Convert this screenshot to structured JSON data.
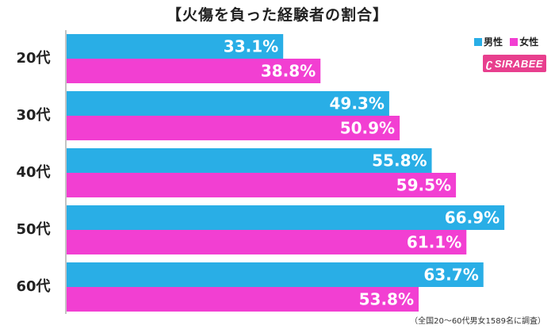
{
  "title": "【火傷を負った経験者の割合】",
  "legend": [
    {
      "label": "男性",
      "color": "#29aee6"
    },
    {
      "label": "女性",
      "color": "#f23fd2"
    }
  ],
  "brand": {
    "mark": "ʗ",
    "text": "SIRABEE"
  },
  "source_note": "（全国20〜60代男女1589名に調査）",
  "chart_data": {
    "type": "bar",
    "orientation": "horizontal",
    "categories": [
      "20代",
      "30代",
      "40代",
      "50代",
      "60代"
    ],
    "series": [
      {
        "name": "男性",
        "color": "#29aee6",
        "values": [
          33.1,
          49.3,
          55.8,
          66.9,
          63.7
        ],
        "labels": [
          "33.1%",
          "49.3%",
          "55.8%",
          "66.9%",
          "63.7%"
        ]
      },
      {
        "name": "女性",
        "color": "#f23fd2",
        "values": [
          38.8,
          50.9,
          59.5,
          61.1,
          53.8
        ],
        "labels": [
          "38.8%",
          "50.9%",
          "59.5%",
          "61.1%",
          "53.8%"
        ]
      }
    ],
    "xlim": [
      0,
      75
    ],
    "data_labels": true,
    "legend_position": "top-right"
  }
}
